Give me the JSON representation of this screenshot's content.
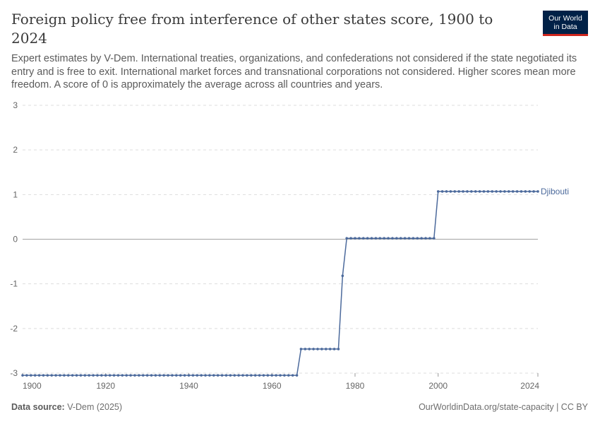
{
  "header": {
    "title": "Foreign policy free from interference of other states score, 1900 to 2024",
    "subtitle": "Expert estimates by V-Dem. International treaties, organizations, and confederations not considered if the state negotiated its entry and is free to exit. International market forces and transnational corporations not considered. Higher scores mean more freedom. A score of 0 is approximately the average across all countries and years.",
    "logo_line1": "Our World",
    "logo_line2": "in Data"
  },
  "footer": {
    "source_label": "Data source:",
    "source_value": "V-Dem (2025)",
    "url": "OurWorldinData.org/state-capacity | CC BY"
  },
  "colors": {
    "series": "#4c6a9c",
    "grid": "#dddddd",
    "zero_line": "#a3a3a3",
    "axis_text": "#666666"
  },
  "chart_data": {
    "type": "line",
    "title": "Foreign policy free from interference of other states score, 1900 to 2024",
    "xlabel": "",
    "ylabel": "",
    "xlim": [
      1900,
      2024
    ],
    "ylim": [
      -3,
      3
    ],
    "x_ticks": [
      1900,
      1920,
      1940,
      1960,
      1980,
      2000,
      2024
    ],
    "y_ticks": [
      3,
      2,
      1,
      0,
      -1,
      -2,
      -3
    ],
    "grid": true,
    "legend": "inline-right",
    "series": [
      {
        "name": "Djibouti",
        "segments": [
          {
            "from": 1900,
            "to": 1966,
            "value": -3.05
          },
          {
            "from": 1967,
            "to": 1976,
            "value": -2.46
          },
          {
            "from": 1977,
            "to": 1977,
            "value": -0.82
          },
          {
            "from": 1978,
            "to": 1999,
            "value": 0.02
          },
          {
            "from": 2000,
            "to": 2024,
            "value": 1.07
          }
        ]
      }
    ]
  }
}
